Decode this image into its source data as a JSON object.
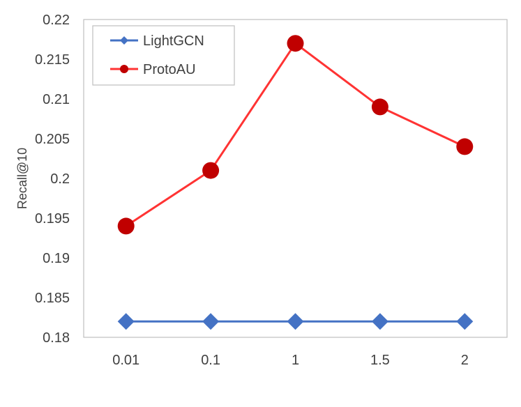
{
  "chart_data": {
    "type": "line",
    "categories": [
      "0.01",
      "0.1",
      "1",
      "1.5",
      "2"
    ],
    "ylabel": "Recall@10",
    "xlabel": "",
    "ylim": [
      0.18,
      0.22
    ],
    "y_ticks": [
      "0.18",
      "0.185",
      "0.19",
      "0.195",
      "0.2",
      "0.205",
      "0.21",
      "0.215",
      "0.22"
    ],
    "grid": false,
    "legend_position": "top-left",
    "series": [
      {
        "name": "LightGCN",
        "values": [
          0.182,
          0.182,
          0.182,
          0.182,
          0.182
        ],
        "color": "#4472C4",
        "marker": "diamond"
      },
      {
        "name": "ProtoAU",
        "values": [
          0.194,
          0.201,
          0.217,
          0.209,
          0.204
        ],
        "color": "#FF3333",
        "marker_color": "#C00000",
        "marker": "circle"
      }
    ]
  }
}
